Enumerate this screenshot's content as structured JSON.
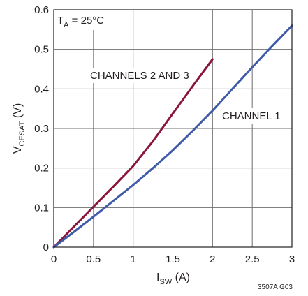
{
  "chart_data": {
    "type": "line",
    "xlabel": {
      "main": "I",
      "sub": "SW",
      "tail": " (A)"
    },
    "ylabel": {
      "main": "V",
      "sub": "CESAT",
      "tail": " (V)"
    },
    "xlim": [
      0,
      3
    ],
    "ylim": [
      0,
      0.6
    ],
    "x_ticks": [
      "0",
      "0.5",
      "1",
      "1.5",
      "2",
      "2.5",
      "3"
    ],
    "y_ticks": [
      "0",
      "0.1",
      "0.2",
      "0.3",
      "0.4",
      "0.5",
      "0.6"
    ],
    "grid": true,
    "condition_label": {
      "main": "T",
      "sub": "A",
      "tail": " = 25°C"
    },
    "series": [
      {
        "name": "CHANNELS 2 AND 3",
        "color": "#8b1538",
        "x": [
          0,
          0.25,
          0.5,
          0.75,
          1.0,
          1.25,
          1.5,
          1.75,
          2.0
        ],
        "y": [
          0,
          0.051,
          0.102,
          0.153,
          0.205,
          0.268,
          0.338,
          0.407,
          0.475
        ]
      },
      {
        "name": "CHANNEL 1",
        "color": "#3e5aa8",
        "x": [
          0,
          0.25,
          0.5,
          0.75,
          1.0,
          1.25,
          1.5,
          1.75,
          2.0,
          2.25,
          2.5,
          2.75,
          3.0
        ],
        "y": [
          0,
          0.038,
          0.077,
          0.117,
          0.157,
          0.2,
          0.245,
          0.294,
          0.345,
          0.4,
          0.455,
          0.508,
          0.56
        ]
      }
    ],
    "figure_code": "3507A G03"
  }
}
